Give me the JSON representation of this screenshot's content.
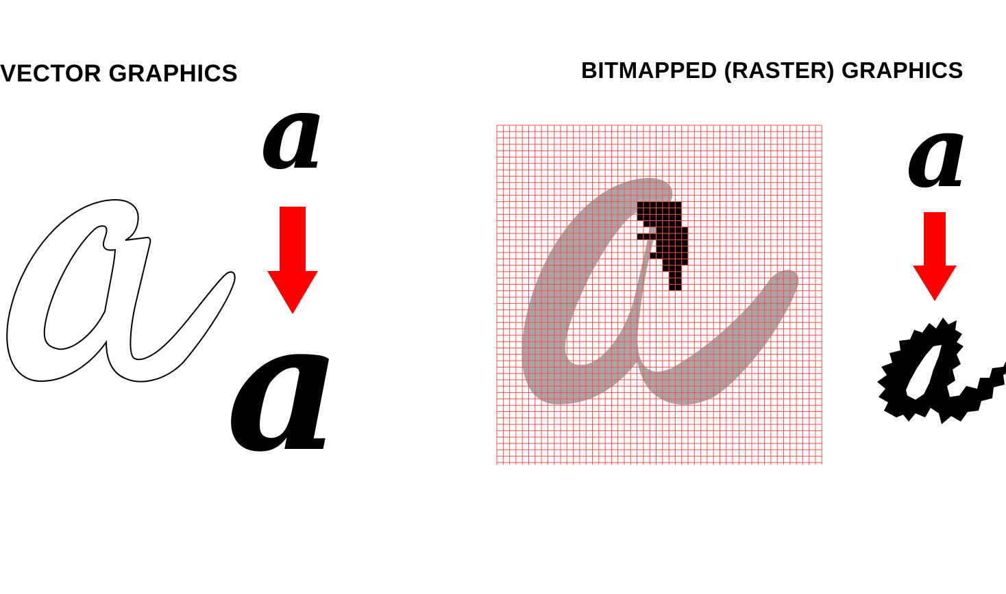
{
  "vector": {
    "title": "VECTOR GRAPHICS",
    "small_letter": "a",
    "large_letter": "a",
    "outline_letter": "a"
  },
  "raster": {
    "title": "BITMAPPED (RASTER) GRAPHICS",
    "small_letter": "a",
    "pixelated_letter": "a",
    "grid_letter": "a"
  },
  "colors": {
    "arrow": "#ff0000",
    "grid_line": "#ff4d4d",
    "grid_letter_fill": "#a6a6a6",
    "pixel_fill": "#000000"
  },
  "icons": {
    "arrow": "down-arrow-icon"
  }
}
